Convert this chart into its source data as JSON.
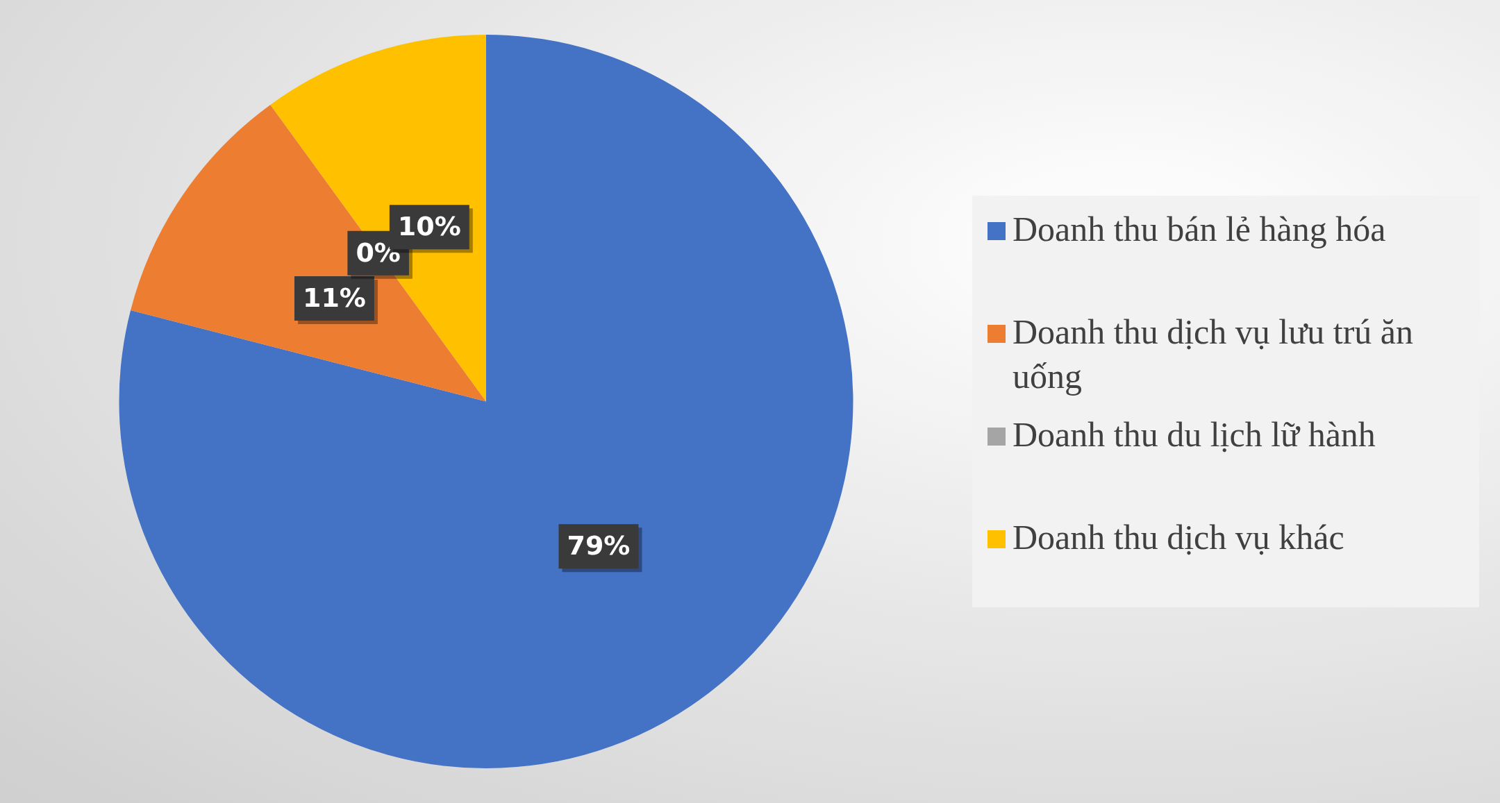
{
  "chart_data": {
    "type": "pie",
    "categories": [
      "Doanh thu bán lẻ hàng hóa",
      "Doanh thu dịch vụ lưu trú ăn uống",
      "Doanh thu du lịch lữ hành",
      "Doanh thu dịch vụ khác"
    ],
    "values": [
      79,
      11,
      0,
      10
    ],
    "colors": [
      "#4472c4",
      "#ed7d31",
      "#a5a5a5",
      "#ffc000"
    ],
    "value_labels": [
      "79%",
      "11%",
      "0%",
      "10%"
    ],
    "legend": "right"
  }
}
